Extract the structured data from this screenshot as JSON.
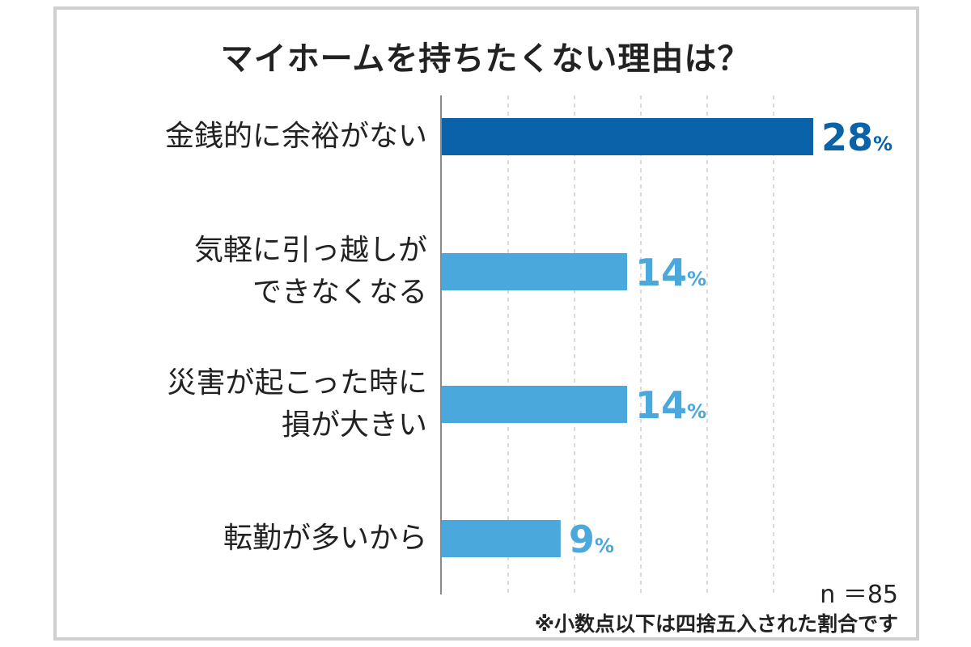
{
  "chart_data": {
    "type": "bar",
    "orientation": "horizontal",
    "title": "マイホームを持ちたくない理由は？",
    "categories": [
      "金銭的に余裕がない",
      "気軽に引っ越しが\nできなくなる",
      "災害が起こった時に\n損が大きい",
      "転勤が多いから"
    ],
    "values": [
      28,
      14,
      14,
      9
    ],
    "value_labels": [
      "28",
      "14",
      "14",
      "9"
    ],
    "unit": "%",
    "xlim": [
      0,
      28
    ],
    "grid": true,
    "colors": [
      "#0a63a8",
      "#4aa8dd",
      "#4aa8dd",
      "#4aa8dd"
    ]
  },
  "sample_size": "n ＝85",
  "footnote": "※小数点以下は四捨五入された割合です"
}
